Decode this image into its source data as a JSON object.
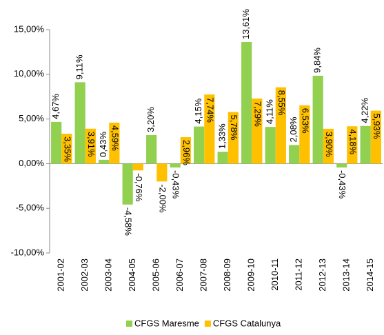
{
  "chart_data": {
    "type": "bar",
    "categories": [
      "2001-02",
      "2002-03",
      "2003-04",
      "2004-05",
      "2005-06",
      "2006-07",
      "2007-08",
      "2008-09",
      "2009-10",
      "2010-11",
      "2011-12",
      "2012-13",
      "2013-14",
      "2014-15"
    ],
    "series": [
      {
        "name": "CFGS Maresme",
        "color": "#92d050",
        "values": [
          4.67,
          9.11,
          0.43,
          -4.58,
          3.2,
          -0.43,
          4.15,
          1.33,
          13.61,
          4.11,
          2.08,
          9.84,
          -0.43,
          4.22
        ],
        "value_labels": [
          "4,67%",
          "9,11%",
          "0,43%",
          "-4,58%",
          "3,20%",
          "-0,43%",
          "4,15%",
          "1,33%",
          "13,61%",
          "4,11%",
          "2,08%",
          "9,84%",
          "-0,43%",
          "4,22%"
        ]
      },
      {
        "name": "CFGS Catalunya",
        "color": "#ffc000",
        "values": [
          3.35,
          3.91,
          4.59,
          -0.76,
          -2.0,
          2.96,
          7.74,
          5.78,
          7.29,
          8.55,
          6.53,
          3.9,
          4.18,
          5.93
        ],
        "value_labels": [
          "3,35%",
          "3,91%",
          "4,59%",
          "-0,76%",
          "-2,00%",
          "2,96%",
          "7,74%",
          "5,78%",
          "7,29%",
          "8,55%",
          "6,53%",
          "3,90%",
          "4,18%",
          "5,93%"
        ]
      }
    ],
    "ylim": [
      -10,
      15
    ],
    "yticks": [
      {
        "value": -10,
        "label": "-10,00%"
      },
      {
        "value": -5,
        "label": "-5,00%"
      },
      {
        "value": 0,
        "label": "0,00%"
      },
      {
        "value": 5,
        "label": "5,00%"
      },
      {
        "value": 10,
        "label": "10,00%"
      },
      {
        "value": 15,
        "label": "15,00%"
      }
    ],
    "grid": false,
    "legend": "bottom"
  }
}
